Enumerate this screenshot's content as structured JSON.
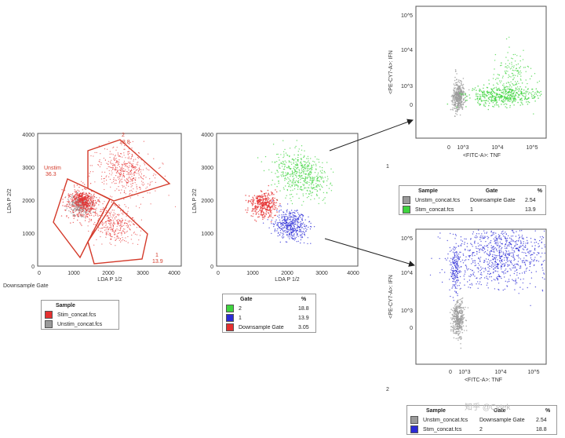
{
  "colors": {
    "red": "#e53030",
    "green": "#3fd43f",
    "blue": "#2a2ad6",
    "gray": "#9a9a9a"
  },
  "plot1": {
    "ylabel": "LDA P 2/2",
    "xlabel": "LDA P 1/2",
    "ticks": [
      "0",
      "1000",
      "2000",
      "3000",
      "4000"
    ],
    "caption": "Downsample Gate",
    "gates": [
      {
        "name": "Unstim",
        "value": "36.3"
      },
      {
        "name": "2",
        "value": "18.8"
      },
      {
        "name": "1",
        "value": "13.9"
      }
    ]
  },
  "plot2": {
    "ylabel": "LDA P 2/2",
    "xlabel": "LDA P 1/2",
    "ticks": [
      "0",
      "1000",
      "2000",
      "3000",
      "4000"
    ]
  },
  "plot3": {
    "ylabel": "<PE-CY7-A>: IFN",
    "xlabel": "<FITC-A>: TNF",
    "ylog": [
      "10^5",
      "10^4",
      "10^3",
      "0"
    ],
    "xlog": [
      "0",
      "10^3",
      "10^4",
      "10^5"
    ],
    "caption": "1"
  },
  "plot4": {
    "ylabel": "<PE-CY7-A>: IFN",
    "xlabel": "<FITC-A>: TNF",
    "ylog": [
      "10^5",
      "10^4",
      "10^3",
      "0"
    ],
    "xlog": [
      "0",
      "10^3",
      "10^4",
      "10^5"
    ],
    "caption": "2"
  },
  "legend1": {
    "header": "Sample",
    "rows": [
      {
        "label": "Stim_concat.fcs",
        "color": "#e53030"
      },
      {
        "label": "Unstim_concat.fcs",
        "color": "#9a9a9a"
      }
    ]
  },
  "legend2": {
    "h1": "Gate",
    "h2": "%",
    "rows": [
      {
        "gate": "2",
        "pct": "18.8",
        "color": "#3fd43f"
      },
      {
        "gate": "1",
        "pct": "13.9",
        "color": "#2a2ad6"
      },
      {
        "gate": "Downsample Gate",
        "pct": "3.05",
        "color": "#e53030"
      }
    ]
  },
  "legend3": {
    "h1": "Sample",
    "h2": "Gate",
    "h3": "%",
    "rows": [
      {
        "sample": "Unstim_concat.fcs",
        "gate": "Downsample Gate",
        "pct": "2.54",
        "color": "#9a9a9a"
      },
      {
        "sample": "Stim_concat.fcs",
        "gate": "1",
        "pct": "13.9",
        "color": "#3fd43f"
      }
    ]
  },
  "legend4": {
    "h1": "Sample",
    "h2": "Gate",
    "h3": "%",
    "rows": [
      {
        "sample": "Unstim_concat.fcs",
        "gate": "Downsample Gate",
        "pct": "2.54",
        "color": "#9a9a9a"
      },
      {
        "sample": "Stim_concat.fcs",
        "gate": "2",
        "pct": "18.8",
        "color": "#2a2ad6"
      }
    ]
  },
  "watermark": "知乎 @Cytek",
  "chart_data": [
    {
      "type": "scatter",
      "title": "",
      "xlabel": "LDA P 1/2",
      "ylabel": "LDA P 2/2",
      "xlim": [
        0,
        4000
      ],
      "ylim": [
        0,
        4000
      ],
      "series": [
        {
          "name": "Stim_concat.fcs",
          "color": "#e53030",
          "center": [
            1500,
            1900
          ]
        },
        {
          "name": "Unstim_concat.fcs",
          "color": "#9a9a9a",
          "center": [
            1400,
            1950
          ]
        }
      ],
      "gates": [
        {
          "name": "Unstim",
          "value": 36.3
        },
        {
          "name": "2",
          "value": 18.8
        },
        {
          "name": "1",
          "value": 13.9
        }
      ]
    },
    {
      "type": "scatter",
      "xlabel": "LDA P 1/2",
      "ylabel": "LDA P 2/2",
      "xlim": [
        0,
        4000
      ],
      "ylim": [
        0,
        4000
      ],
      "series": [
        {
          "name": "2",
          "value": 18.8,
          "color": "#3fd43f"
        },
        {
          "name": "1",
          "value": 13.9,
          "color": "#2a2ad6"
        },
        {
          "name": "Downsample Gate",
          "value": 3.05,
          "color": "#e53030"
        }
      ]
    },
    {
      "type": "scatter",
      "xlabel": "<FITC-A>: TNF",
      "ylabel": "<PE-CY7-A>: IFN",
      "scale": "log",
      "series": [
        {
          "name": "Unstim_concat.fcs",
          "gate": "Downsample Gate",
          "value": 2.54,
          "color": "#9a9a9a"
        },
        {
          "name": "Stim_concat.fcs",
          "gate": "1",
          "value": 13.9,
          "color": "#3fd43f"
        }
      ]
    },
    {
      "type": "scatter",
      "xlabel": "<FITC-A>: TNF",
      "ylabel": "<PE-CY7-A>: IFN",
      "scale": "log",
      "series": [
        {
          "name": "Unstim_concat.fcs",
          "gate": "Downsample Gate",
          "value": 2.54,
          "color": "#9a9a9a"
        },
        {
          "name": "Stim_concat.fcs",
          "gate": "2",
          "value": 18.8,
          "color": "#2a2ad6"
        }
      ]
    }
  ]
}
